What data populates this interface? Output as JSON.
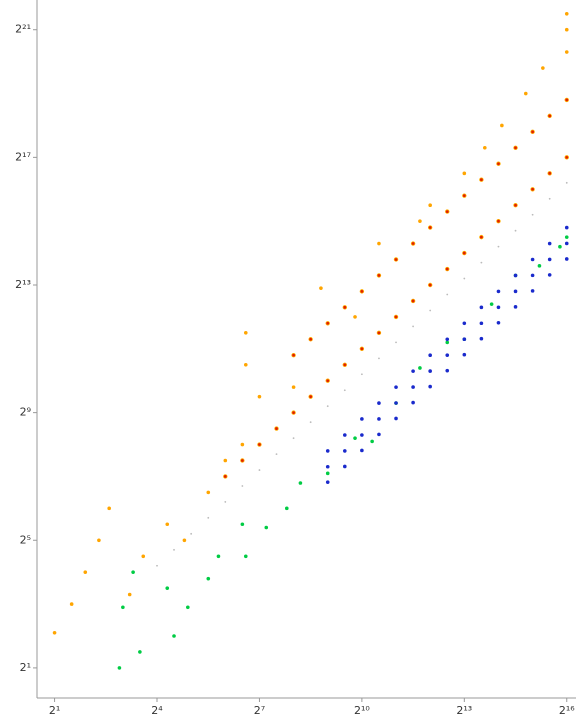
{
  "chart_data": {
    "type": "scatter",
    "log_base": 2,
    "xlim": [
      1.4,
      70000
    ],
    "ylim": [
      1.04,
      4000000
    ],
    "xticks": [
      {
        "value": 2,
        "label": "2¹"
      },
      {
        "value": 16,
        "label": "2⁴"
      },
      {
        "value": 128,
        "label": "2⁷"
      },
      {
        "value": 1024,
        "label": "2¹⁰"
      },
      {
        "value": 8192,
        "label": "2¹³"
      },
      {
        "value": 65536,
        "label": "2¹⁶"
      }
    ],
    "yticks": [
      {
        "value": 2,
        "label": "2¹"
      },
      {
        "value": 32,
        "label": "2⁵"
      },
      {
        "value": 512,
        "label": "2⁹"
      },
      {
        "value": 8192,
        "label": "2¹³"
      },
      {
        "value": 131072,
        "label": "2¹⁷"
      },
      {
        "value": 2097152,
        "label": "2²¹"
      }
    ],
    "series": [
      {
        "color": "#bbbbbb",
        "x": [
          16,
          22.6,
          32,
          45.3,
          64,
          90.5,
          128,
          181,
          256,
          362,
          512,
          724,
          1024,
          1448,
          2048,
          2896,
          4096,
          5793,
          8192,
          11585,
          16384,
          23170,
          32768,
          46341,
          65536
        ],
        "values": [
          18.4,
          26,
          36.8,
          52.1,
          73.6,
          104,
          147,
          208,
          294,
          416,
          589,
          833,
          1178,
          1665,
          2355,
          3330,
          4710,
          6662,
          9421,
          13323,
          18842,
          26646,
          37683,
          53292,
          75366
        ]
      },
      {
        "color": "#ffa500",
        "x": [
          2,
          2.83,
          3.73,
          4.92,
          6.06,
          9.19,
          12.1,
          19.7,
          27.9,
          45.3,
          64,
          90.5,
          97,
          97,
          128,
          256,
          446,
          891,
          1448,
          3327,
          4096,
          8192,
          12417,
          17560,
          28526,
          40342,
          65536,
          65536,
          65536
        ],
        "values": [
          4.29,
          8,
          16,
          32,
          64,
          9.85,
          22.6,
          45.3,
          32,
          90.5,
          181,
          256,
          2900,
          1448,
          724,
          891,
          7643,
          4096,
          20171,
          32768,
          46341,
          92682,
          161387,
          262144,
          524288,
          912488,
          2965821,
          2097152,
          1290948
        ]
      },
      {
        "color": "#e02000",
        "x": [
          64,
          90.5,
          128,
          181,
          256,
          362,
          512,
          724,
          1024,
          1448,
          2048,
          2896,
          4096,
          5793,
          8192,
          11585,
          16384,
          23170,
          32768,
          46341,
          65536,
          256,
          362,
          512,
          724,
          1024,
          1448,
          2048,
          2896,
          4096,
          5793,
          8192,
          11585,
          16384,
          23170,
          32768,
          46341,
          65536
        ],
        "values": [
          128,
          181,
          256,
          362,
          512,
          724,
          1024,
          1448,
          2048,
          2896,
          4096,
          5793,
          8192,
          11585,
          16384,
          23170,
          32768,
          46341,
          65536,
          92682,
          131072,
          1783,
          2521,
          3566,
          5043,
          7132,
          10086,
          14263,
          20171,
          28526,
          40342,
          57052,
          80684,
          114105,
          161369,
          228209,
          322737,
          456419
        ]
      },
      {
        "color": "#00cc44",
        "x": [
          7.46,
          9.85,
          11.3,
          19.7,
          22.6,
          29.9,
          45.3,
          55.7,
          90.5,
          97,
          147,
          223,
          294,
          512,
          891,
          1261,
          2048,
          3327,
          5793,
          8192,
          14263,
          23170,
          37640,
          57052,
          65536,
          8
        ],
        "values": [
          2,
          16,
          2.83,
          11.3,
          4,
          7.46,
          13.9,
          22.6,
          45.3,
          22.6,
          42.2,
          64,
          111,
          137,
          294,
          274,
          630,
          1351,
          2353,
          2521,
          5404,
          10086,
          12417,
          18820,
          23170,
          7.46
        ]
      },
      {
        "color": "#1a2acc",
        "x": [
          512,
          724,
          1024,
          1448,
          2048,
          2896,
          4096,
          5793,
          8192,
          11585,
          16384,
          23170,
          32768,
          46341,
          65536,
          512,
          724,
          1024,
          1448,
          2048,
          2896,
          4096,
          5793,
          8192,
          11585,
          16384,
          23170,
          32768,
          46341,
          65536,
          512,
          724,
          1024,
          1448,
          2048,
          2896,
          4096,
          5793,
          8192,
          11585,
          16384,
          23170,
          32768,
          46341,
          65536
        ],
        "values": [
          158,
          223,
          315,
          446,
          631,
          892,
          1262,
          1784,
          2523,
          3568,
          5046,
          7136,
          10093,
          14273,
          20185,
          223,
          315,
          446,
          630,
          891,
          1260,
          1782,
          2520,
          3564,
          5040,
          7127,
          10079,
          14254,
          20158,
          28508,
          113,
          159,
          225,
          319,
          451,
          637,
          901,
          1274,
          1802,
          2549,
          3604,
          5097,
          7209,
          10195,
          14418
        ]
      }
    ]
  }
}
